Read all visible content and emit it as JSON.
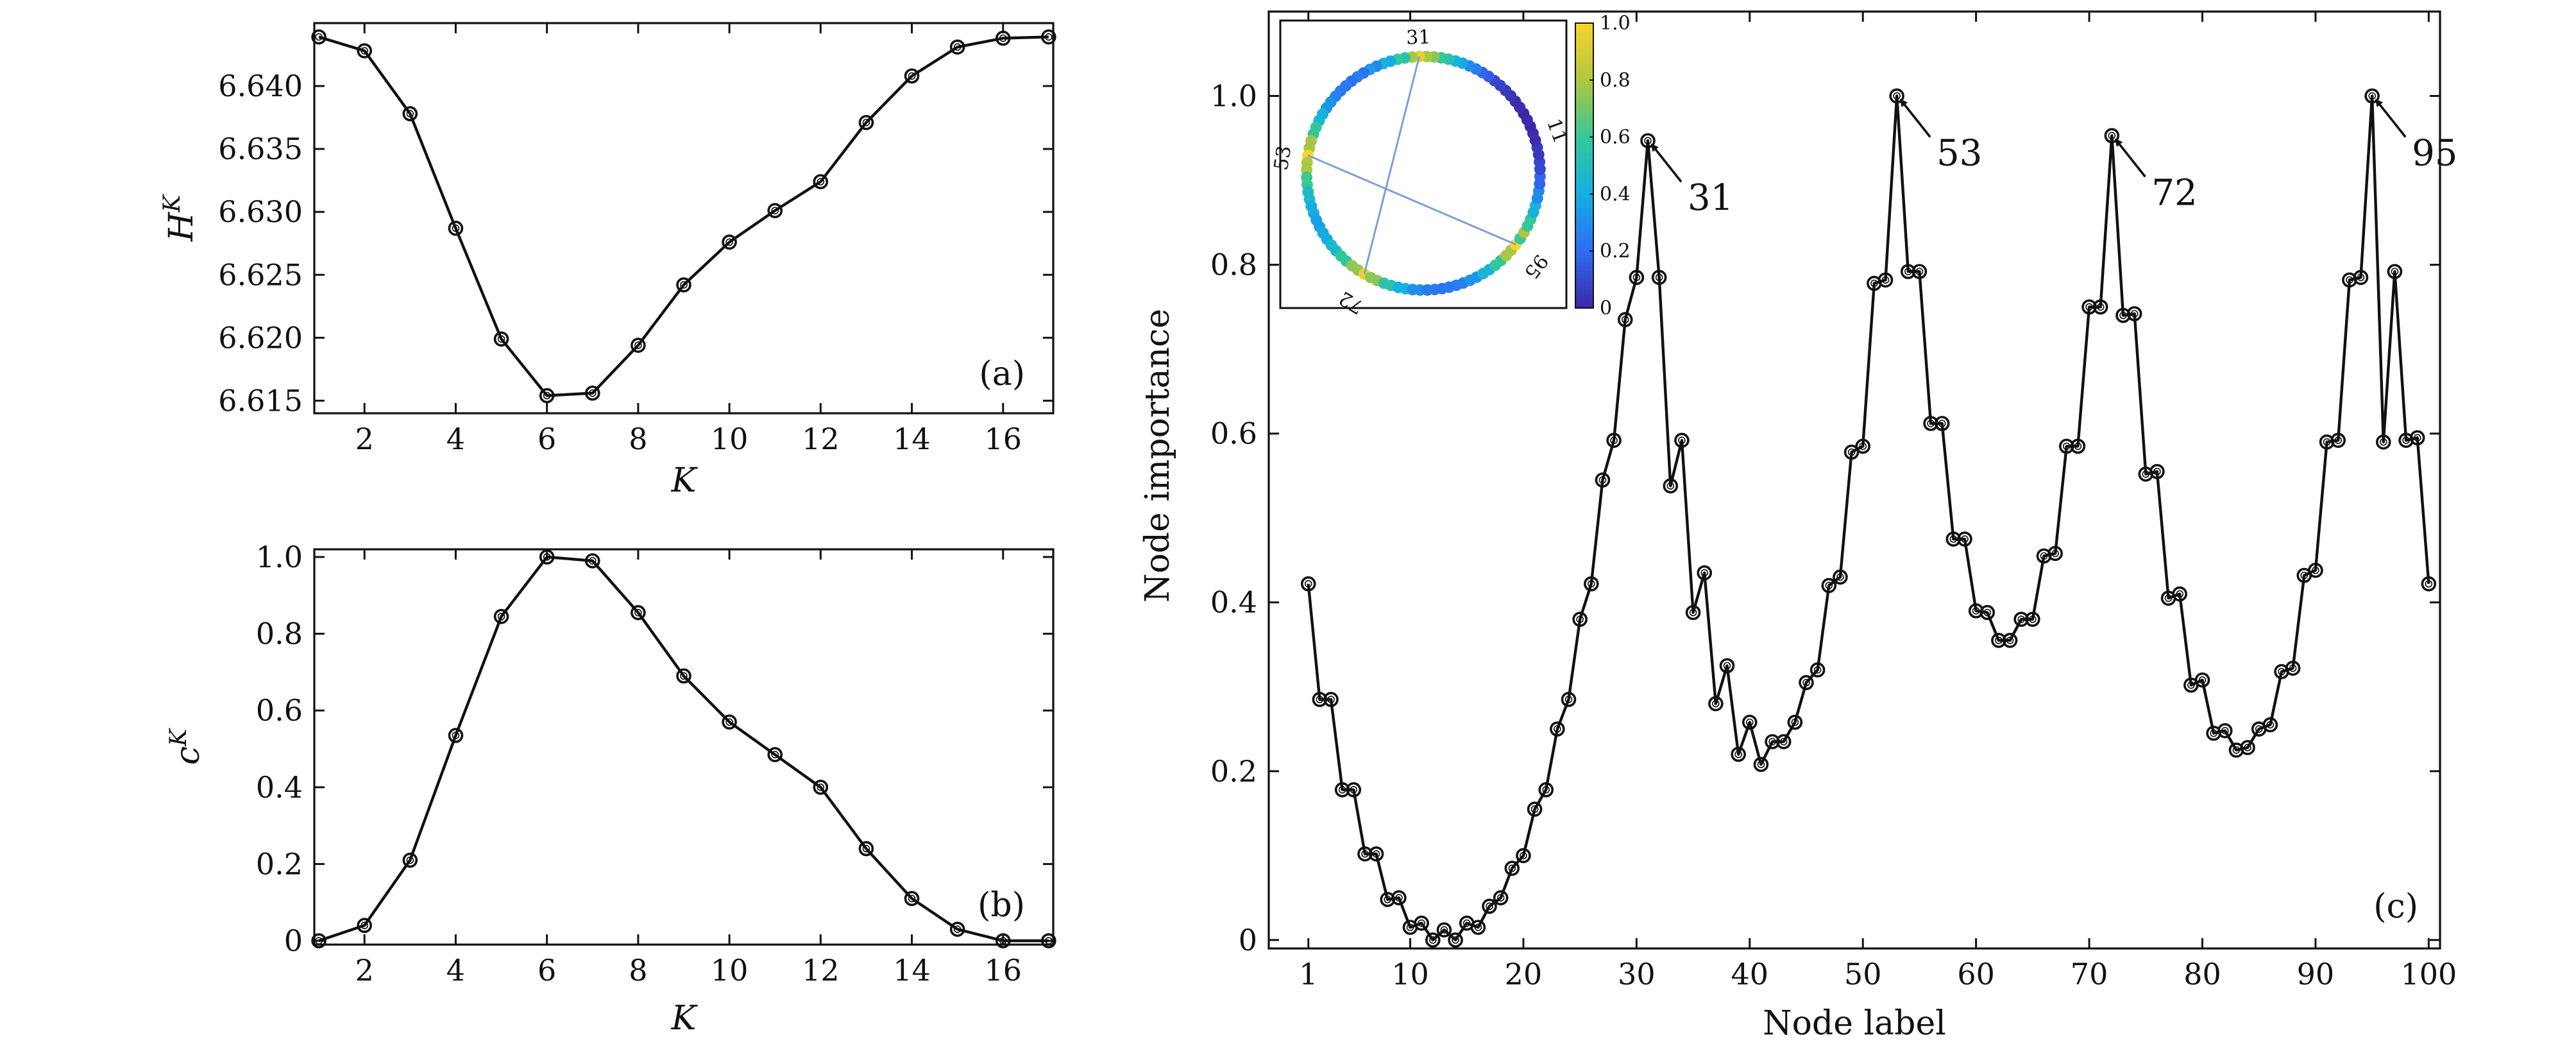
{
  "chart_data": [
    {
      "id": "a",
      "type": "line",
      "panel_label": "(a)",
      "xlabel": "K",
      "ylabel": "H",
      "ylabel_sup": "K",
      "x": [
        1,
        2,
        3,
        4,
        5,
        6,
        7,
        8,
        9,
        10,
        11,
        12,
        13,
        14,
        15,
        16,
        17
      ],
      "values": [
        6.6439,
        6.6428,
        6.6378,
        6.6287,
        6.6199,
        6.6154,
        6.6156,
        6.6194,
        6.6242,
        6.6276,
        6.6301,
        6.6324,
        6.6371,
        6.6408,
        6.6431,
        6.6438,
        6.6439
      ],
      "xlim": [
        0.9,
        17.1
      ],
      "ylim": [
        6.614,
        6.645
      ],
      "xticks": [
        "2",
        "4",
        "6",
        "8",
        "10",
        "12",
        "14",
        "16"
      ],
      "xtick_values": [
        2,
        4,
        6,
        8,
        10,
        12,
        14,
        16
      ],
      "yticks": [
        "6.615",
        "6.620",
        "6.625",
        "6.630",
        "6.635",
        "6.640"
      ],
      "ytick_values": [
        6.615,
        6.62,
        6.625,
        6.63,
        6.635,
        6.64
      ]
    },
    {
      "id": "b",
      "type": "line",
      "panel_label": "(b)",
      "xlabel": "K",
      "ylabel": "c",
      "ylabel_sup": "K",
      "x": [
        1,
        2,
        3,
        4,
        5,
        6,
        7,
        8,
        9,
        10,
        11,
        12,
        13,
        14,
        15,
        16,
        17
      ],
      "values": [
        0,
        0.04,
        0.21,
        0.535,
        0.845,
        1.0,
        0.99,
        0.855,
        0.69,
        0.57,
        0.485,
        0.4,
        0.24,
        0.11,
        0.03,
        0,
        0
      ],
      "xlim": [
        0.9,
        17.1
      ],
      "ylim": [
        -0.01,
        1.02
      ],
      "xticks": [
        "2",
        "4",
        "6",
        "8",
        "10",
        "12",
        "14",
        "16"
      ],
      "xtick_values": [
        2,
        4,
        6,
        8,
        10,
        12,
        14,
        16
      ],
      "yticks": [
        "0",
        "0.2",
        "0.4",
        "0.6",
        "0.8",
        "1.0"
      ],
      "ytick_values": [
        0,
        0.2,
        0.4,
        0.6,
        0.8,
        1.0
      ]
    },
    {
      "id": "c",
      "type": "line",
      "panel_label": "(c)",
      "xlabel": "Node label",
      "ylabel": "Node importance",
      "x": [
        1,
        2,
        3,
        4,
        5,
        6,
        7,
        8,
        9,
        10,
        11,
        12,
        13,
        14,
        15,
        16,
        17,
        18,
        19,
        20,
        21,
        22,
        23,
        24,
        25,
        26,
        27,
        28,
        29,
        30,
        31,
        32,
        33,
        34,
        35,
        36,
        37,
        38,
        39,
        40,
        41,
        42,
        43,
        44,
        45,
        46,
        47,
        48,
        49,
        50,
        51,
        52,
        53,
        54,
        55,
        56,
        57,
        58,
        59,
        60,
        61,
        62,
        63,
        64,
        65,
        66,
        67,
        68,
        69,
        70,
        71,
        72,
        73,
        74,
        75,
        76,
        77,
        78,
        79,
        80,
        81,
        82,
        83,
        84,
        85,
        86,
        87,
        88,
        89,
        90,
        91,
        92,
        93,
        94,
        95,
        96,
        97,
        98,
        99,
        100
      ],
      "values": [
        0.422,
        0.285,
        0.285,
        0.178,
        0.178,
        0.102,
        0.102,
        0.048,
        0.05,
        0.015,
        0.02,
        0,
        0.012,
        0,
        0.02,
        0.015,
        0.04,
        0.05,
        0.085,
        0.1,
        0.155,
        0.178,
        0.25,
        0.285,
        0.38,
        0.422,
        0.545,
        0.592,
        0.735,
        0.785,
        0.947,
        0.785,
        0.538,
        0.592,
        0.388,
        0.435,
        0.28,
        0.325,
        0.22,
        0.258,
        0.208,
        0.235,
        0.235,
        0.258,
        0.305,
        0.32,
        0.42,
        0.43,
        0.578,
        0.585,
        0.778,
        0.782,
        1.0,
        0.792,
        0.792,
        0.612,
        0.612,
        0.475,
        0.475,
        0.39,
        0.388,
        0.355,
        0.355,
        0.38,
        0.38,
        0.455,
        0.458,
        0.585,
        0.585,
        0.75,
        0.75,
        0.953,
        0.74,
        0.742,
        0.552,
        0.555,
        0.405,
        0.41,
        0.302,
        0.308,
        0.245,
        0.248,
        0.225,
        0.228,
        0.25,
        0.255,
        0.318,
        0.322,
        0.432,
        0.438,
        0.59,
        0.592,
        0.782,
        0.785,
        1.0,
        0.59,
        0.792,
        0.592,
        0.595,
        0.422
      ],
      "xlim": [
        -2.5,
        101
      ],
      "ylim": [
        -0.01,
        1.1
      ],
      "xticks": [
        "1",
        "10",
        "20",
        "30",
        "40",
        "50",
        "60",
        "70",
        "80",
        "90",
        "100"
      ],
      "xtick_values": [
        1,
        10,
        20,
        30,
        40,
        50,
        60,
        70,
        80,
        90,
        100
      ],
      "yticks": [
        "0",
        "0.2",
        "0.4",
        "0.6",
        "0.8",
        "1.0"
      ],
      "ytick_values": [
        0,
        0.2,
        0.4,
        0.6,
        0.8,
        1.0
      ],
      "annotations": [
        {
          "label": "31",
          "node": 31,
          "value": 0.947
        },
        {
          "label": "53",
          "node": 53,
          "value": 1.0
        },
        {
          "label": "72",
          "node": 72,
          "value": 0.953
        },
        {
          "label": "95",
          "node": 95,
          "value": 1.0
        }
      ],
      "inset": {
        "type": "ring-network",
        "nodes": 100,
        "node_labels": [
          "31",
          "11",
          "53",
          "95",
          "72"
        ],
        "chords": [
          [
            "53",
            "95"
          ],
          [
            "31",
            "72"
          ]
        ],
        "colorbar_ticks": [
          "0",
          "0.2",
          "0.4",
          "0.6",
          "0.8",
          "1.0"
        ],
        "colorbar_values": [
          0,
          0.2,
          0.4,
          0.6,
          0.8,
          1.0
        ],
        "colormap": [
          "#3e26a8",
          "#2f6cf3",
          "#13b0e3",
          "#36c897",
          "#b0c73e",
          "#f9d52a"
        ]
      }
    }
  ]
}
